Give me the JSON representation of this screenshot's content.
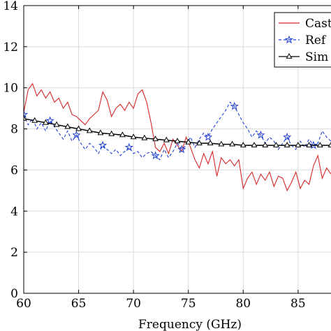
{
  "chart_data": {
    "type": "line",
    "xlabel": "Frequency (GHz)",
    "ylabel": "",
    "xlim": [
      60,
      88
    ],
    "ylim": [
      0,
      14
    ],
    "x_ticks": [
      "60",
      "65",
      "70",
      "75",
      "80",
      "85"
    ],
    "y_ticks": [
      "0",
      "2",
      "4",
      "6",
      "8",
      "10",
      "12",
      "14"
    ],
    "grid": true,
    "legend_position": "top-right",
    "legend": [
      "Cast",
      "Ref",
      "Sim"
    ],
    "series": [
      {
        "name": "Cast",
        "color": "#d62728",
        "style": "solid",
        "marker": "none",
        "x": [
          60.0,
          60.4,
          60.8,
          61.2,
          61.6,
          62.0,
          62.4,
          62.8,
          63.2,
          63.6,
          64.0,
          64.4,
          64.8,
          65.2,
          65.6,
          66.0,
          66.4,
          66.8,
          67.2,
          67.6,
          68.0,
          68.4,
          68.8,
          69.2,
          69.6,
          70.0,
          70.4,
          70.8,
          71.2,
          71.6,
          72.0,
          72.4,
          72.8,
          73.2,
          73.6,
          74.0,
          74.4,
          74.8,
          75.2,
          75.6,
          76.0,
          76.4,
          76.8,
          77.2,
          77.6,
          78.0,
          78.4,
          78.8,
          79.2,
          79.6,
          80.0,
          80.4,
          80.8,
          81.2,
          81.6,
          82.0,
          82.4,
          82.8,
          83.2,
          83.6,
          84.0,
          84.4,
          84.8,
          85.2,
          85.6,
          86.0,
          86.4,
          86.8,
          87.2,
          87.6,
          88.0
        ],
        "y": [
          8.8,
          9.9,
          10.2,
          9.6,
          9.9,
          9.5,
          9.8,
          9.3,
          9.5,
          9.0,
          9.3,
          8.7,
          8.6,
          8.4,
          8.2,
          8.5,
          8.7,
          8.9,
          9.8,
          9.4,
          8.6,
          9.0,
          9.2,
          8.9,
          9.3,
          9.0,
          9.7,
          9.9,
          9.3,
          8.3,
          7.1,
          6.9,
          7.3,
          6.8,
          7.5,
          7.2,
          6.9,
          7.6,
          7.1,
          6.5,
          6.1,
          6.8,
          6.3,
          6.9,
          5.7,
          6.6,
          6.3,
          6.5,
          6.2,
          6.5,
          5.1,
          5.6,
          5.9,
          5.3,
          5.8,
          5.5,
          5.9,
          5.2,
          5.7,
          5.6,
          5.0,
          5.4,
          5.9,
          5.1,
          5.5,
          5.3,
          6.2,
          6.7,
          5.6,
          6.1,
          5.8
        ]
      },
      {
        "name": "Ref",
        "color": "#1f3fd8",
        "style": "dashed",
        "marker": "star",
        "x": [
          60.0,
          60.4,
          60.8,
          61.2,
          61.6,
          62.0,
          62.4,
          62.8,
          63.2,
          63.6,
          64.0,
          64.4,
          64.8,
          65.2,
          65.6,
          66.0,
          66.4,
          66.8,
          67.2,
          67.6,
          68.0,
          68.4,
          68.8,
          69.2,
          69.6,
          70.0,
          70.4,
          70.8,
          71.2,
          71.6,
          72.0,
          72.4,
          72.8,
          73.2,
          73.6,
          74.0,
          74.4,
          74.8,
          75.2,
          75.6,
          76.0,
          76.4,
          76.8,
          77.2,
          77.6,
          78.0,
          78.4,
          78.8,
          79.2,
          79.6,
          80.0,
          80.4,
          80.8,
          81.2,
          81.6,
          82.0,
          82.4,
          82.8,
          83.2,
          83.6,
          84.0,
          84.4,
          84.8,
          85.2,
          85.6,
          86.0,
          86.4,
          86.8,
          87.2,
          87.6,
          88.0
        ],
        "y": [
          8.7,
          8.2,
          8.5,
          8.0,
          8.3,
          7.9,
          8.4,
          8.1,
          7.8,
          7.5,
          7.9,
          7.4,
          7.7,
          7.3,
          7.0,
          7.3,
          7.1,
          6.8,
          7.2,
          7.0,
          6.8,
          7.0,
          6.7,
          6.9,
          7.1,
          6.8,
          6.9,
          6.6,
          6.8,
          6.9,
          6.7,
          6.5,
          7.0,
          6.6,
          6.9,
          7.3,
          7.0,
          7.2,
          7.6,
          7.1,
          7.5,
          7.8,
          7.6,
          8.0,
          8.3,
          8.6,
          8.9,
          9.3,
          9.1,
          8.7,
          8.3,
          8.0,
          7.6,
          7.9,
          7.7,
          7.3,
          7.6,
          7.4,
          7.0,
          7.3,
          7.6,
          7.2,
          7.0,
          7.4,
          7.1,
          7.5,
          7.2,
          7.3,
          7.9,
          7.6,
          7.4
        ]
      },
      {
        "name": "Sim",
        "color": "#000000",
        "style": "solid",
        "marker": "triangle",
        "x": [
          60,
          61,
          62,
          63,
          64,
          65,
          66,
          67,
          68,
          69,
          70,
          71,
          72,
          73,
          74,
          75,
          76,
          77,
          78,
          79,
          80,
          81,
          82,
          83,
          84,
          85,
          86,
          87,
          88
        ],
        "y": [
          8.5,
          8.4,
          8.3,
          8.2,
          8.1,
          8.0,
          7.9,
          7.8,
          7.75,
          7.7,
          7.6,
          7.55,
          7.5,
          7.45,
          7.4,
          7.35,
          7.3,
          7.3,
          7.25,
          7.25,
          7.2,
          7.2,
          7.2,
          7.2,
          7.2,
          7.2,
          7.2,
          7.2,
          7.2
        ]
      }
    ]
  }
}
